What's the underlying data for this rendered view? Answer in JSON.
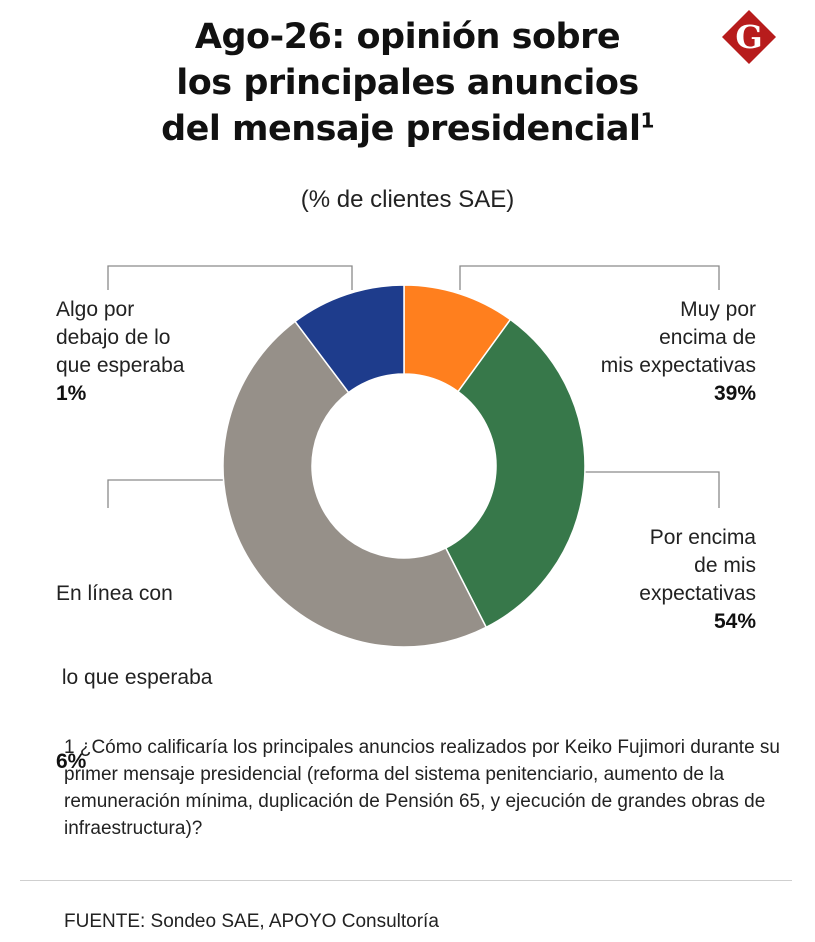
{
  "title": {
    "line1": "Ago-26: opinión sobre",
    "line2": "los principales anuncios",
    "line3": "del mensaje presidencial",
    "footnote_mark": "1"
  },
  "subtitle": "(% de clientes SAE)",
  "logo": {
    "letter": "G",
    "color": "#b71c1c"
  },
  "chart_data": {
    "type": "pie",
    "subtitle": "(% de clientes SAE)",
    "donut": true,
    "slices": [
      {
        "label": "Muy por encima de mis expectativas",
        "value": 39,
        "display": "39%",
        "color": "#ff7f1e"
      },
      {
        "label": "Por encima de mis expectativas",
        "value": 54,
        "display": "54%",
        "color": "#37784a"
      },
      {
        "label": "En línea con lo que esperaba",
        "value": 6,
        "display": "6%",
        "color": "#969089"
      },
      {
        "label": "Algo por debajo de lo que esperaba",
        "value": 1,
        "display": "1%",
        "color": "#1e3c8c"
      }
    ]
  },
  "labels": {
    "top_left": {
      "lines": [
        "Algo por",
        "debajo de lo",
        "que esperaba"
      ],
      "pct": "1%"
    },
    "top_right": {
      "lines": [
        "Muy por",
        "encima de",
        "mis expectativas"
      ],
      "pct": "39%"
    },
    "bottom_left": {
      "lines": [
        "En línea con",
        " lo que esperaba"
      ],
      "pct": "6%"
    },
    "bottom_right": {
      "lines": [
        "Por encima",
        "de mis",
        "expectativas"
      ],
      "pct": "54%"
    }
  },
  "footnote": "1 ¿Cómo calificaría los principales anuncios realizados por Keiko Fujimori durante su primer mensaje presidencial (reforma del sistema penitenciario, aumento de la remuneración mínima, duplicación de Pensión 65, y ejecución de grandes obras de infraestructura)?",
  "source": "FUENTE: Sondeo SAE, APOYO Consultoría"
}
